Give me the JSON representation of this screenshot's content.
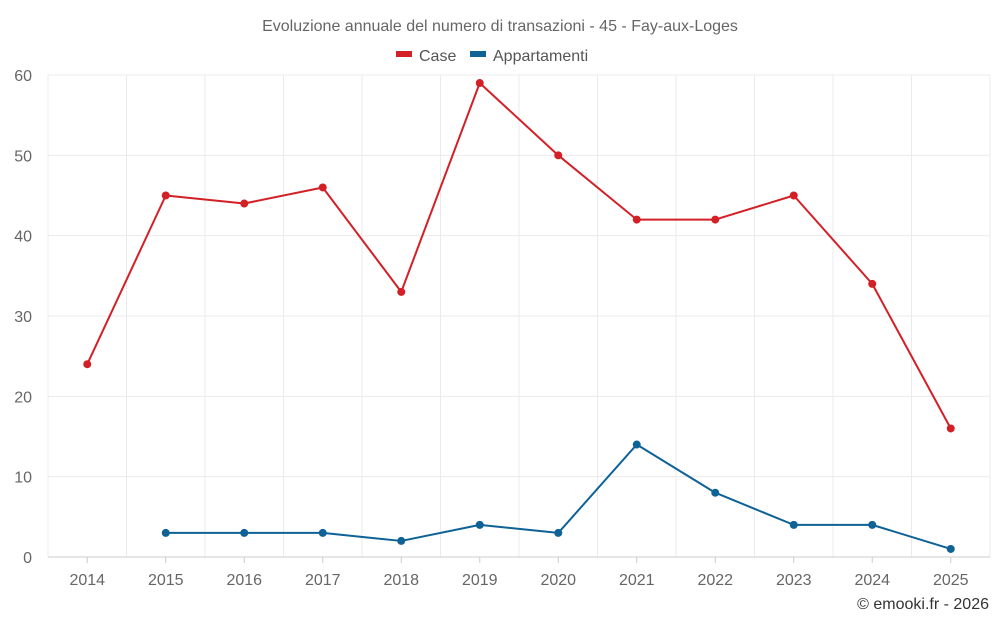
{
  "chart_data": {
    "type": "line",
    "title": "Evoluzione annuale del numero di transazioni - 45 - Fay-aux-Loges",
    "categories": [
      "2014",
      "2015",
      "2016",
      "2017",
      "2018",
      "2019",
      "2020",
      "2021",
      "2022",
      "2023",
      "2024",
      "2025"
    ],
    "series": [
      {
        "name": "Case",
        "color": "#d32027",
        "values": [
          24,
          45,
          44,
          46,
          33,
          59,
          50,
          42,
          42,
          45,
          34,
          16
        ]
      },
      {
        "name": "Appartamenti",
        "color": "#0e6296",
        "values": [
          null,
          3,
          3,
          3,
          2,
          4,
          3,
          14,
          8,
          4,
          4,
          1
        ]
      }
    ],
    "ylim": [
      0,
      60
    ],
    "yticks": [
      0,
      10,
      20,
      30,
      40,
      50,
      60
    ],
    "xlabel": "",
    "ylabel": "",
    "grid": true,
    "legend": "top-center"
  },
  "credit": "© emooki.fr - 2026"
}
